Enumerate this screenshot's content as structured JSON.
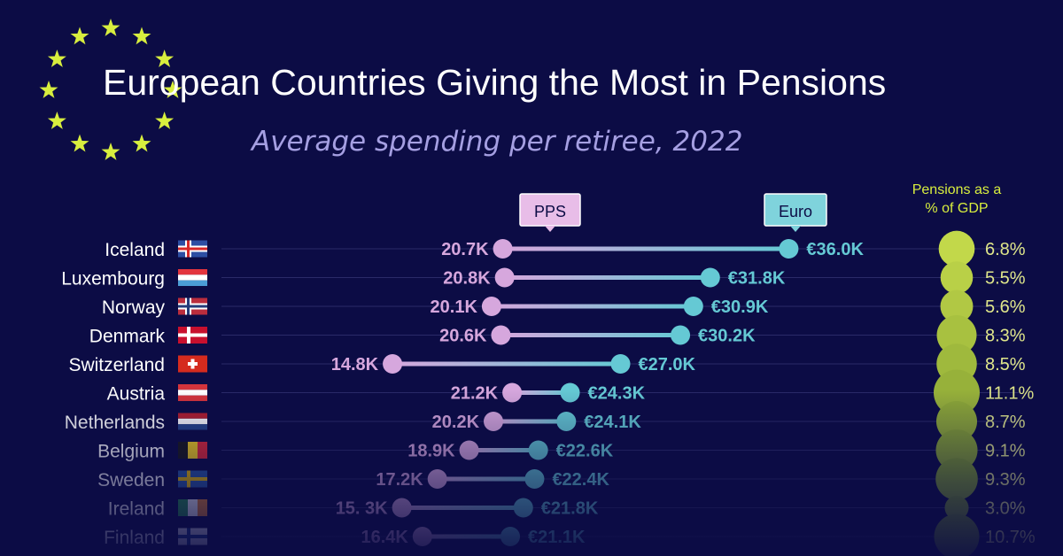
{
  "header": {
    "title": "European Countries Giving the Most in Pensions",
    "subtitle": "Average spending per retiree, 2022"
  },
  "legend": {
    "pps_label": "PPS",
    "euro_label": "Euro",
    "gdp_label_line1": "Pensions as a",
    "gdp_label_line2": "% of GDP"
  },
  "colors": {
    "background": "#0c0c45",
    "pps": "#d6a7dd",
    "euro": "#65c9d4",
    "gdp_bubble_light": "#c2d84a",
    "gdp_bubble_dark": "#6b8a2a",
    "stars": "#d8ee3e"
  },
  "chart_data": {
    "type": "dumbbell",
    "series": [
      {
        "name": "PPS"
      },
      {
        "name": "Euro"
      },
      {
        "name": "Pensions as a % of GDP"
      }
    ],
    "rows": [
      {
        "country": "Iceland",
        "pps": 20.7,
        "pps_label": "20.7K",
        "euro": 36.0,
        "euro_label": "€36.0K",
        "gdp": 6.8,
        "gdp_label": "6.8%",
        "flag": "iceland"
      },
      {
        "country": "Luxembourg",
        "pps": 20.8,
        "pps_label": "20.8K",
        "euro": 31.8,
        "euro_label": "€31.8K",
        "gdp": 5.5,
        "gdp_label": "5.5%",
        "flag": "luxembourg"
      },
      {
        "country": "Norway",
        "pps": 20.1,
        "pps_label": "20.1K",
        "euro": 30.9,
        "euro_label": "€30.9K",
        "gdp": 5.6,
        "gdp_label": "5.6%",
        "flag": "norway"
      },
      {
        "country": "Denmark",
        "pps": 20.6,
        "pps_label": "20.6K",
        "euro": 30.2,
        "euro_label": "€30.2K",
        "gdp": 8.3,
        "gdp_label": "8.3%",
        "flag": "denmark"
      },
      {
        "country": "Switzerland",
        "pps": 14.8,
        "pps_label": "14.8K",
        "euro": 27.0,
        "euro_label": "€27.0K",
        "gdp": 8.5,
        "gdp_label": "8.5%",
        "flag": "switzerland"
      },
      {
        "country": "Austria",
        "pps": 21.2,
        "pps_label": "21.2K",
        "euro": 24.3,
        "euro_label": "€24.3K",
        "gdp": 11.1,
        "gdp_label": "11.1%",
        "flag": "austria"
      },
      {
        "country": "Netherlands",
        "pps": 20.2,
        "pps_label": "20.2K",
        "euro": 24.1,
        "euro_label": "€24.1K",
        "gdp": 8.7,
        "gdp_label": "8.7%",
        "flag": "netherlands"
      },
      {
        "country": "Belgium",
        "pps": 18.9,
        "pps_label": "18.9K",
        "euro": 22.6,
        "euro_label": "€22.6K",
        "gdp": 9.1,
        "gdp_label": "9.1%",
        "flag": "belgium"
      },
      {
        "country": "Sweden",
        "pps": 17.2,
        "pps_label": "17.2K",
        "euro": 22.4,
        "euro_label": "€22.4K",
        "gdp": 9.3,
        "gdp_label": "9.3%",
        "flag": "sweden"
      },
      {
        "country": "Ireland",
        "pps": 15.3,
        "pps_label": "15. 3K",
        "euro": 21.8,
        "euro_label": "€21.8K",
        "gdp": 3.0,
        "gdp_label": "3.0%",
        "flag": "ireland"
      },
      {
        "country": "Finland",
        "pps": 16.4,
        "pps_label": "16.4K",
        "euro": 21.1,
        "euro_label": "€21.1K",
        "gdp": 10.7,
        "gdp_label": "10.7%",
        "flag": "finland"
      }
    ]
  }
}
